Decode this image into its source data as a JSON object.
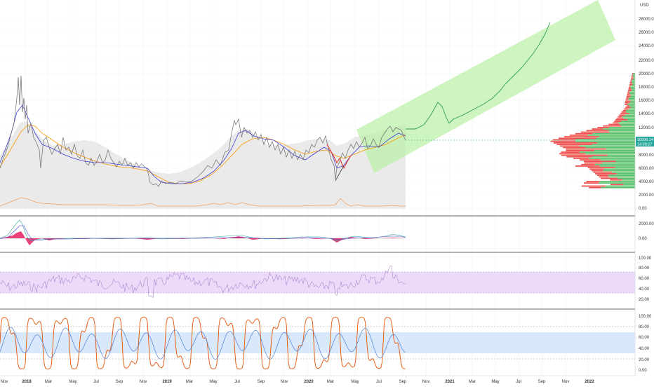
{
  "price_axis": {
    "currency": "USD",
    "labels": [
      "28000.00",
      "26000.00",
      "24000.00",
      "22000.00",
      "20000.00",
      "18000.00",
      "16000.00",
      "14000.00",
      "12000.00",
      "10000.00",
      "8000.00",
      "6000.00",
      "4000.00",
      "2000.00",
      "0.00"
    ],
    "current_price": "10596.14",
    "countdown": "14:09:27"
  },
  "macd_axis": {
    "labels": [
      "2000.00",
      "0.00"
    ]
  },
  "rsi_axis": {
    "labels": [
      "100.00",
      "80.00",
      "60.00",
      "40.00",
      "20.00"
    ]
  },
  "stoch_axis": {
    "labels": [
      "100.00",
      "80.00",
      "60.00",
      "40.00",
      "20.00",
      "0.00"
    ]
  },
  "time_axis": {
    "labels": [
      "Nov",
      "2018",
      "Mar",
      "May",
      "Jul",
      "Sep",
      "Nov",
      "2019",
      "Mar",
      "May",
      "Jul",
      "Sep",
      "Nov",
      "2020",
      "Mar",
      "May",
      "Jul",
      "Sep",
      "Nov",
      "2021",
      "Mar",
      "May",
      "Jul",
      "Sep",
      "Nov",
      "2022"
    ]
  },
  "colors": {
    "background": "#ffffff",
    "grid": "#f0f3f6",
    "projection_channel": "#b9efa4",
    "projection_path": "#2e9e52",
    "volume_profile_up": "#5cc26d",
    "volume_profile_down": "#ef5350",
    "ma_fast": "#3f3fd8",
    "ma_slow": "#ff9800",
    "candle_up": "#26a69a",
    "candle_down": "#ef5350",
    "bb_fill": "#e0e0e0",
    "rsi_band": "#e9d5f7",
    "stoch_band": "#d6e6fb",
    "macd_hist": "#e91e63",
    "stoch_k": "#e65100",
    "stoch_d": "#4a7fd4",
    "price_tag": "#26a69a"
  },
  "chart_data": [
    {
      "type": "line",
      "panel": "price",
      "ylim": [
        0,
        30000
      ],
      "series": [
        {
          "x": [
            "2017-10",
            "2017-11",
            "2017-12",
            "2018-01",
            "2018-02",
            "2018-03",
            "2018-04",
            "2018-05",
            "2018-06",
            "2018-07",
            "2018-08",
            "2018-09",
            "2018-10",
            "2018-11",
            "2018-12",
            "2019-01",
            "2019-02",
            "2019-03",
            "2019-04",
            "2019-05",
            "2019-06",
            "2019-07",
            "2019-08",
            "2019-09",
            "2019-10",
            "2019-11",
            "2019-12",
            "2020-01",
            "2020-02",
            "2020-03",
            "2020-04",
            "2020-05",
            "2020-06",
            "2020-07",
            "2020-08",
            "2020-09"
          ],
          "values": [
            5000,
            7000,
            19000,
            13000,
            9000,
            8000,
            7500,
            8500,
            6500,
            7000,
            6500,
            6500,
            6300,
            4000,
            3300,
            3600,
            3700,
            4000,
            5200,
            8000,
            11500,
            10000,
            10500,
            9000,
            8500,
            7500,
            7300,
            8500,
            9800,
            5000,
            7000,
            9200,
            9400,
            9500,
            11500,
            10500
          ]
        }
      ]
    },
    {
      "type": "line",
      "panel": "projection",
      "series": [
        {
          "x": [
            "2020-09",
            "2020-10",
            "2020-11",
            "2020-12",
            "2021-01",
            "2021-02",
            "2021-03",
            "2021-04",
            "2021-05",
            "2021-06",
            "2021-07",
            "2021-08",
            "2021-09"
          ],
          "values": [
            11500,
            12000,
            13500,
            15500,
            12500,
            14000,
            15500,
            17000,
            19000,
            21000,
            23500,
            25500,
            28000
          ]
        }
      ]
    },
    {
      "type": "line",
      "panel": "rsi",
      "ylim": [
        20,
        100
      ],
      "bands": [
        30,
        70
      ]
    },
    {
      "type": "line",
      "panel": "stochastic",
      "ylim": [
        0,
        100
      ],
      "bands": [
        20,
        80
      ]
    }
  ]
}
